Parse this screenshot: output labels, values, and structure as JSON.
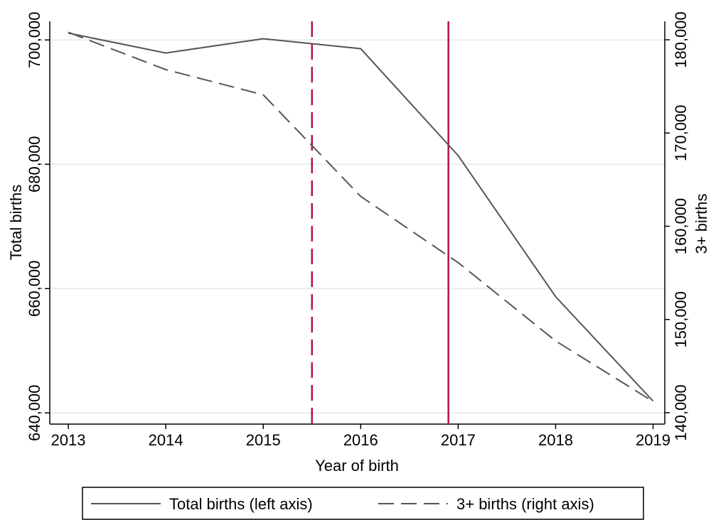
{
  "chart_data": {
    "type": "line",
    "x_label": "Year of birth",
    "y_label": "Total births",
    "y2_label": "3+ births",
    "x": [
      2013,
      2014,
      2015,
      2016,
      2017,
      2018,
      2019
    ],
    "series": [
      {
        "name": "Total births (left axis)",
        "color": "#555555",
        "dash": "solid",
        "values": [
          701100,
          697900,
          700200,
          698600,
          681400,
          658700,
          641900
        ]
      },
      {
        "name": "3+ births (right axis)",
        "color": "#555555",
        "dash": "dashed",
        "axis": "y2",
        "values": [
          180800,
          176800,
          174100,
          163200,
          156100,
          147700,
          141200
        ]
      }
    ],
    "xlim": [
      2012.81,
      2019.12
    ],
    "xticks": [
      2013,
      2014,
      2015,
      2016,
      2017,
      2018,
      2019
    ],
    "ylim": [
      638200,
      703000
    ],
    "yticks": [
      {
        "value": 640000,
        "label": "640,000"
      },
      {
        "value": 660000,
        "label": "660,000"
      },
      {
        "value": 680000,
        "label": "680,000"
      },
      {
        "value": 700000,
        "label": "700,000"
      }
    ],
    "y2lim": [
      138780,
      181980
    ],
    "y2ticks": [
      {
        "value": 140000,
        "label": "140,000"
      },
      {
        "value": 150000,
        "label": "150,000"
      },
      {
        "value": 160000,
        "label": "160,000"
      },
      {
        "value": 170000,
        "label": "170,000"
      },
      {
        "value": 180000,
        "label": "180,000"
      }
    ],
    "grid": true,
    "grid_color": "#e6eeee",
    "vlines": [
      {
        "x": 2015.5,
        "color": "#b5163f",
        "dash": "dashed"
      },
      {
        "x": 2016.9,
        "color": "#b5163f",
        "dash": "solid"
      }
    ],
    "legend": "bottom"
  }
}
